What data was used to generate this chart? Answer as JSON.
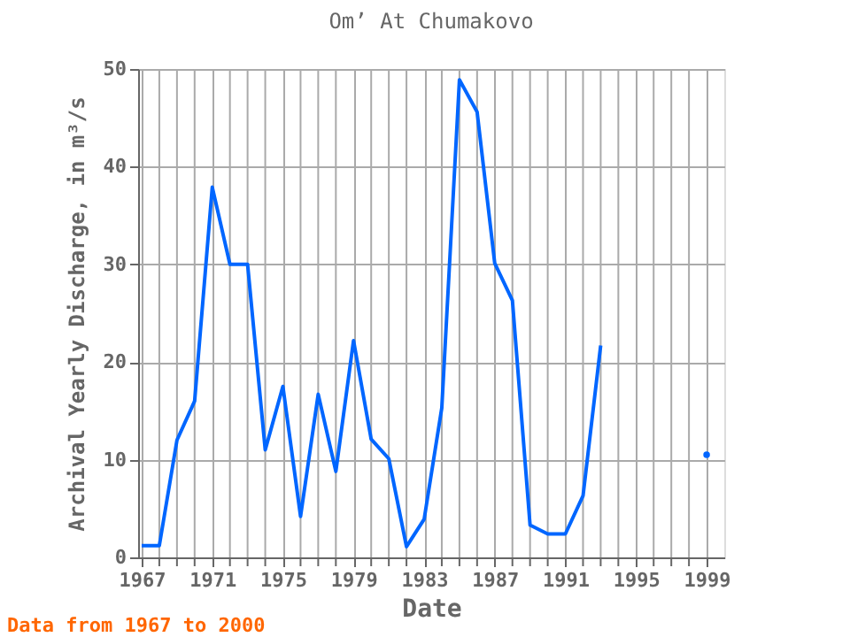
{
  "chart_data": {
    "type": "line",
    "title": "Om’ At Chumakovo",
    "xlabel": "Date",
    "ylabel": "Archival Yearly Discharge, in m³/s",
    "annotations": [
      "Data from 1967 to 2000"
    ],
    "x": [
      1967,
      1968,
      1969,
      1970,
      1971,
      1972,
      1973,
      1974,
      1975,
      1976,
      1977,
      1978,
      1979,
      1980,
      1981,
      1982,
      1983,
      1984,
      1985,
      1986,
      1987,
      1988,
      1989,
      1990,
      1991,
      1992,
      1993,
      1994,
      1995,
      1996,
      1997,
      1998,
      1999
    ],
    "series": [
      {
        "color": "#0066ff",
        "values": [
          1.2,
          1.2,
          12,
          16,
          37.9,
          30,
          30,
          11,
          17.5,
          4.2,
          16.7,
          8.8,
          22.2,
          12.1,
          10.1,
          1.1,
          3.9,
          15.3,
          48.9,
          45.6,
          30.1,
          26.3,
          3.3,
          2.4,
          2.4,
          6.3,
          21.7,
          null,
          null,
          null,
          null,
          null,
          10.5
        ]
      }
    ],
    "xlim": [
      1966.8,
      2000
    ],
    "ylim": [
      0,
      50
    ],
    "xticks": [
      1967,
      {
        "value": 1968,
        "label": null
      },
      {
        "value": 1969,
        "label": null
      },
      {
        "value": 1970,
        "label": null
      },
      1971,
      {
        "value": 1972,
        "label": null
      },
      {
        "value": 1973,
        "label": null
      },
      {
        "value": 1974,
        "label": null
      },
      1975,
      {
        "value": 1976,
        "label": null
      },
      {
        "value": 1977,
        "label": null
      },
      {
        "value": 1978,
        "label": null
      },
      1979,
      {
        "value": 1980,
        "label": null
      },
      {
        "value": 1981,
        "label": null
      },
      {
        "value": 1982,
        "label": null
      },
      1983,
      {
        "value": 1984,
        "label": null
      },
      {
        "value": 1985,
        "label": null
      },
      {
        "value": 1986,
        "label": null
      },
      1987,
      {
        "value": 1988,
        "label": null
      },
      {
        "value": 1989,
        "label": null
      },
      {
        "value": 1990,
        "label": null
      },
      1991,
      {
        "value": 1992,
        "label": null
      },
      {
        "value": 1993,
        "label": null
      },
      {
        "value": 1994,
        "label": null
      },
      1995,
      {
        "value": 1996,
        "label": null
      },
      {
        "value": 1997,
        "label": null
      },
      {
        "value": 1998,
        "label": null
      },
      1999
    ],
    "yticks": [
      0,
      10,
      20,
      30,
      40,
      50
    ],
    "grid": true,
    "legend": false,
    "line_style": "solid"
  }
}
